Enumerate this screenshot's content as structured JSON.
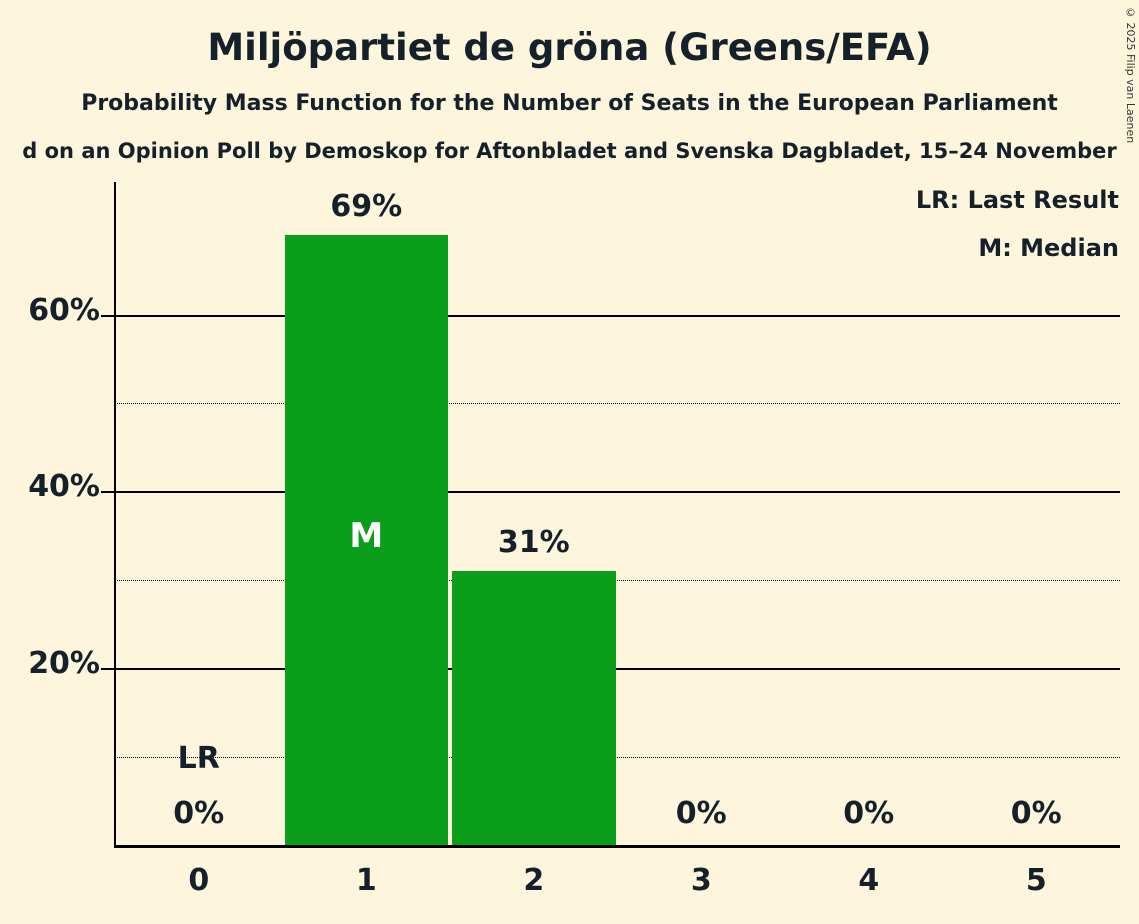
{
  "title": "Miljöpartiet de gröna (Greens/EFA)",
  "subtitle": "Probability Mass Function for the Number of Seats in the European Parliament",
  "source_line": "d on an Opinion Poll by Demoskop for Aftonbladet and Svenska Dagbladet, 15–24 November",
  "copyright": "© 2025 Filip van Laenen",
  "legend": {
    "last_result": "LR: Last Result",
    "median": "M: Median"
  },
  "chart_data": {
    "type": "bar",
    "title": "Miljöpartiet de gröna (Greens/EFA)",
    "subtitle": "Probability Mass Function for the Number of Seats in the European Parliament",
    "xlabel": "",
    "ylabel": "",
    "categories": [
      "0",
      "1",
      "2",
      "3",
      "4",
      "5"
    ],
    "values": [
      0,
      69,
      31,
      0,
      0,
      0
    ],
    "bar_labels": [
      "0%",
      "69%",
      "31%",
      "0%",
      "0%",
      "0%"
    ],
    "ylim": [
      0,
      75
    ],
    "solid_gridlines": [
      20,
      40,
      60
    ],
    "dotted_gridlines": [
      10,
      30,
      50
    ],
    "ytick_labels": [
      "20%",
      "40%",
      "60%"
    ],
    "median_seats": "1",
    "median_marker": "M",
    "last_result_seats": "0",
    "last_result_marker": "LR",
    "bar_color": "#0a9e1a",
    "background_color": "#fdf5dc",
    "text_color": "#14212b",
    "grid_on": true,
    "legend_position": "top-right"
  }
}
